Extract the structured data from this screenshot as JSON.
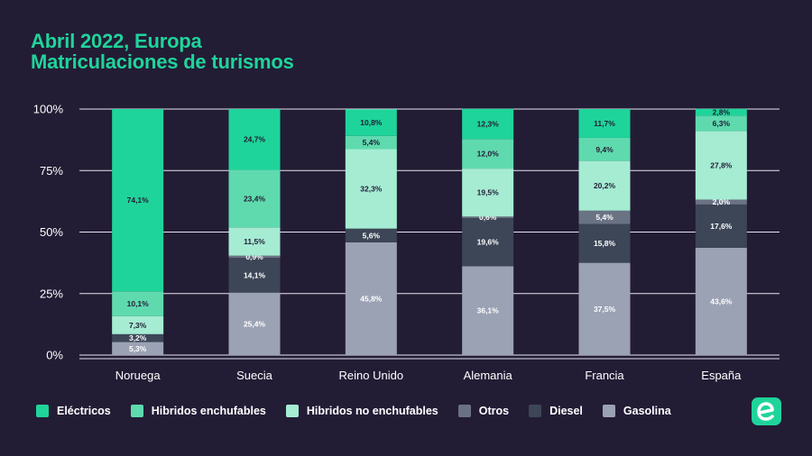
{
  "header": {
    "title_line1": "Abril 2022, Europa",
    "title_line2": "Matriculaciones de turismos"
  },
  "colors": {
    "background": "#231c35",
    "accent": "#1fd49a"
  },
  "chart_data": {
    "type": "bar",
    "stacked": true,
    "title": "Abril 2022, Europa — Matriculaciones de turismos",
    "xlabel": "",
    "ylabel": "",
    "ylim": [
      0,
      100
    ],
    "yticks": [
      "0%",
      "25%",
      "50%",
      "75%",
      "100%"
    ],
    "grid": true,
    "legend_position": "bottom",
    "categories": [
      "Noruega",
      "Suecia",
      "Reino Unido",
      "Alemania",
      "Francia",
      "España"
    ],
    "series": [
      {
        "name": "Gasolina",
        "color": "#9ba2b3",
        "text_color": "#ffffff",
        "values": [
          5.3,
          25.4,
          45.8,
          36.1,
          37.5,
          43.6
        ],
        "labels": [
          "5,3%",
          "25,4%",
          "45,8%",
          "36,1%",
          "37,5%",
          "43,6%"
        ]
      },
      {
        "name": "Diesel",
        "color": "#3c4657",
        "text_color": "#ffffff",
        "values": [
          3.2,
          14.1,
          5.6,
          19.6,
          15.8,
          17.6
        ],
        "labels": [
          "3,2%",
          "14,1%",
          "5,6%",
          "19,6%",
          "15,8%",
          "17,6%"
        ]
      },
      {
        "name": "Otros",
        "color": "#6a7384",
        "text_color": "#ffffff",
        "values": [
          0,
          0.9,
          0,
          0.6,
          5.4,
          2.0
        ],
        "labels": [
          "",
          "0,9%",
          "",
          "0,6%",
          "5,4%",
          "2,0%"
        ]
      },
      {
        "name": "Hibridos no enchufables",
        "color": "#a5ecd3",
        "text_color": "#231c35",
        "values": [
          7.3,
          11.5,
          32.3,
          19.5,
          20.2,
          27.8
        ],
        "labels": [
          "7,3%",
          "11,5%",
          "32,3%",
          "19,5%",
          "20,2%",
          "27,8%"
        ]
      },
      {
        "name": "Hibridos enchufables",
        "color": "#5fdaae",
        "text_color": "#231c35",
        "values": [
          10.1,
          23.4,
          5.4,
          12.0,
          9.4,
          6.3
        ],
        "labels": [
          "10,1%",
          "23,4%",
          "5,4%",
          "12,0%",
          "9,4%",
          "6,3%"
        ]
      },
      {
        "name": "Eléctricos",
        "color": "#1fd49a",
        "text_color": "#231c35",
        "values": [
          74.1,
          24.7,
          10.8,
          12.3,
          11.7,
          2.8
        ],
        "labels": [
          "74,1%",
          "24,7%",
          "10,8%",
          "12,3%",
          "11,7%",
          "2,8%"
        ]
      }
    ]
  },
  "legend": {
    "items": [
      {
        "label": "Eléctricos",
        "color": "#1fd49a"
      },
      {
        "label": "Hibridos enchufables",
        "color": "#5fdaae"
      },
      {
        "label": "Hibridos no enchufables",
        "color": "#a5ecd3"
      },
      {
        "label": "Otros",
        "color": "#6a7384"
      },
      {
        "label": "Diesel",
        "color": "#3c4657"
      },
      {
        "label": "Gasolina",
        "color": "#9ba2b3"
      }
    ]
  },
  "logo": {
    "icon": "brand-e-logo-icon"
  }
}
